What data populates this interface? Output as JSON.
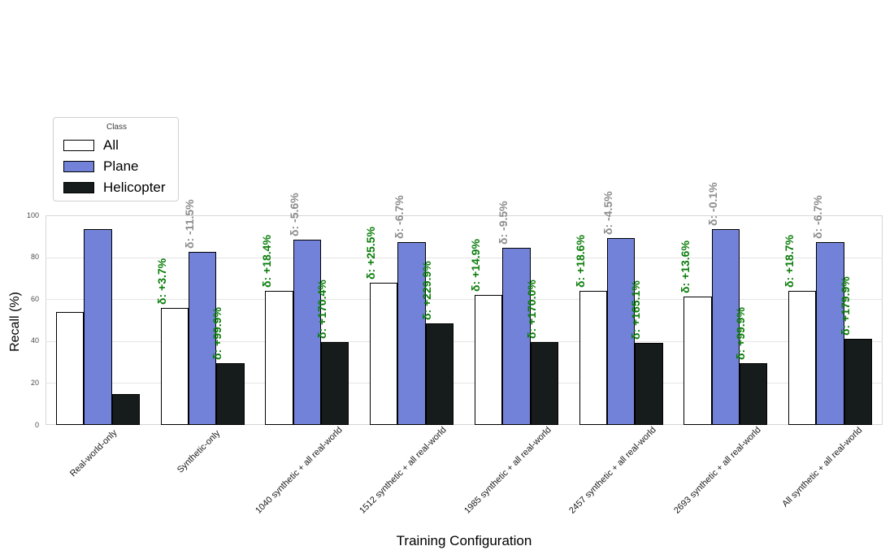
{
  "chart_data": {
    "type": "bar",
    "title": "",
    "xlabel": "Training Configuration",
    "ylabel": "Recall (%)",
    "ylim": [
      0,
      100
    ],
    "yticks": [
      0,
      20,
      40,
      60,
      80,
      100
    ],
    "grid": "horizontal",
    "legend": {
      "title": "Class",
      "position": "upper-left"
    },
    "categories": [
      "Real-world-only",
      "Synthetic-only",
      "1040 synthetic + all real-world",
      "1512 synthetic + all real-world",
      "1985 synthetic + all real-world",
      "2457 synthetic + all real-world",
      "2693 synthetic + all real-world",
      "All synthetic + all real-world"
    ],
    "series": [
      {
        "name": "All",
        "color": "#ffffff",
        "edge_color": "#000000",
        "values": [
          54.0,
          56.0,
          63.9,
          67.8,
          62.0,
          64.0,
          61.3,
          64.1
        ],
        "annotations": [
          "",
          "δ: +3.7%",
          "δ: +18.4%",
          "δ: +25.5%",
          "δ: +14.9%",
          "δ: +18.6%",
          "δ: +13.6%",
          "δ: +18.7%"
        ],
        "annotation_color": "#0a7d0a"
      },
      {
        "name": "Plane",
        "color": "#7282d8",
        "edge_color": "#000000",
        "values": [
          93.4,
          82.7,
          88.2,
          87.1,
          84.5,
          89.2,
          93.3,
          87.1
        ],
        "annotations": [
          "",
          "δ: -11.5%",
          "δ: -5.6%",
          "δ: -6.7%",
          "δ: -9.5%",
          "δ: -4.5%",
          "δ: -0.1%",
          "δ: -6.7%"
        ],
        "annotation_color": "#8c8c8c"
      },
      {
        "name": "Helicopter",
        "color": "#161b1b",
        "edge_color": "#000000",
        "values": [
          14.7,
          29.4,
          39.7,
          48.5,
          39.7,
          39.0,
          29.4,
          41.2
        ],
        "annotations": [
          "",
          "δ: +99.9%",
          "δ: +170.4%",
          "δ: +229.9%",
          "δ: +170.0%",
          "δ: +165.1%",
          "δ: +99.9%",
          "δ: +179.9%"
        ],
        "annotation_color": "#0a7d0a"
      }
    ]
  }
}
